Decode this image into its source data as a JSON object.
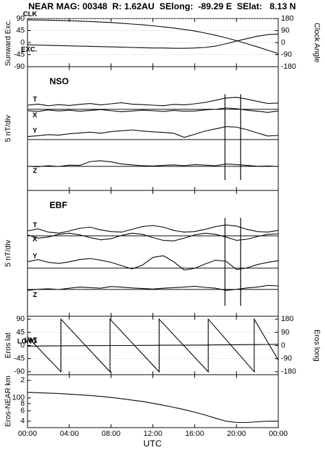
{
  "figure": {
    "title": "NEAR MAG: 00348  R: 1.62AU  SElong:  -89.29 E  SElat:   8.13 N",
    "xlabel": "UTC",
    "xlim": [
      0,
      24
    ],
    "xticks": [
      {
        "value": 0,
        "label": "00:00"
      },
      {
        "value": 4,
        "label": "04:00"
      },
      {
        "value": 8,
        "label": "08:00"
      },
      {
        "value": 12,
        "label": "12:00"
      },
      {
        "value": 16,
        "label": "16:00"
      },
      {
        "value": 20,
        "label": "20:00"
      },
      {
        "value": 24,
        "label": "00:00"
      }
    ]
  },
  "chart_data": [
    {
      "type": "line",
      "ylabel": "Sunward Exc.",
      "y2label": "Clock Angle",
      "ylim": [
        -90,
        90
      ],
      "yticks": [
        90,
        45,
        0,
        -45,
        -90
      ],
      "y2lim": [
        -180,
        180
      ],
      "y2ticks": [
        180,
        90,
        0,
        -90,
        -180
      ],
      "grid": true,
      "x": [
        0,
        1,
        2,
        3,
        4,
        5,
        6,
        7,
        8,
        9,
        10,
        11,
        12,
        13,
        14,
        15,
        16,
        17,
        18,
        19,
        20,
        21,
        22,
        23,
        24
      ],
      "series": [
        {
          "name": "CLK",
          "color": "#000000",
          "axis": "y2",
          "values": [
            170,
            169,
            168,
            166,
            164,
            161,
            158,
            154,
            150,
            145,
            139,
            133,
            126,
            118,
            109,
            99,
            87,
            72,
            55,
            36,
            15,
            -8,
            -32,
            -57,
            -82
          ]
        },
        {
          "name": "EXC.",
          "color": "#000000",
          "values": [
            -8,
            -9,
            -10,
            -11,
            -12,
            -13,
            -14,
            -15,
            -16,
            -17,
            -18,
            -19,
            -20,
            -20,
            -21,
            -21,
            -20,
            -18,
            -13,
            -4,
            6,
            15,
            24,
            30,
            32
          ]
        }
      ]
    },
    {
      "type": "line",
      "ylabel": "5 nT/div",
      "label": "NSO",
      "ylim": [
        0,
        45
      ],
      "baselines": [
        29.5,
        18.5,
        8.75
      ],
      "events": [
        18.9,
        20.4
      ],
      "x": [
        0,
        1,
        2,
        3,
        4,
        5,
        6,
        7,
        8,
        9,
        10,
        11,
        12,
        13,
        14,
        15,
        16,
        17,
        18,
        19,
        20,
        21,
        22,
        23,
        24
      ],
      "series": [
        {
          "name": "T",
          "color": "#000000",
          "values": [
            31.0,
            31.4,
            30.8,
            31.2,
            30.9,
            31.3,
            31.6,
            31.1,
            31.5,
            31.9,
            31.4,
            31.2,
            31.0,
            30.8,
            31.3,
            31.1,
            31.5,
            32.0,
            32.8,
            33.6,
            33.9,
            33.2,
            32.4,
            31.6,
            31.8
          ]
        },
        {
          "name": "X",
          "color": "#000000",
          "values": [
            29.0,
            28.7,
            29.3,
            28.9,
            29.2,
            28.8,
            29.1,
            29.4,
            29.0,
            28.6,
            28.9,
            29.2,
            29.0,
            28.7,
            29.1,
            28.8,
            28.9,
            29.3,
            29.5,
            30.0,
            29.7,
            29.2,
            28.8,
            28.4,
            28.9
          ]
        },
        {
          "name": "Y",
          "color": "#000000",
          "values": [
            19.6,
            19.9,
            20.3,
            20.1,
            20.6,
            20.9,
            21.2,
            20.8,
            21.4,
            21.7,
            22.0,
            21.6,
            21.3,
            21.1,
            20.8,
            19.3,
            20.4,
            21.6,
            22.4,
            23.2,
            23.0,
            22.1,
            20.9,
            19.8,
            20.0
          ]
        },
        {
          "name": "Z",
          "color": "#000000",
          "values": [
            8.8,
            8.6,
            9.0,
            8.7,
            9.2,
            9.1,
            10.5,
            10.8,
            10.4,
            9.6,
            9.3,
            9.0,
            8.9,
            9.1,
            9.3,
            9.0,
            9.4,
            9.2,
            9.0,
            9.6,
            9.4,
            9.1,
            8.8,
            8.9,
            8.7
          ]
        }
      ]
    },
    {
      "type": "line",
      "ylabel": "5 nT/div",
      "label": "EBF",
      "ylim": [
        0,
        45.75
      ],
      "baselines": [
        29.25,
        17.5,
        9.75
      ],
      "events": [
        18.9,
        20.4
      ],
      "x": [
        0,
        1,
        2,
        3,
        4,
        5,
        6,
        7,
        8,
        9,
        10,
        11,
        12,
        13,
        14,
        15,
        16,
        17,
        18,
        19,
        20,
        21,
        22,
        23,
        24
      ],
      "series": [
        {
          "name": "T",
          "color": "#000000",
          "values": [
            31.0,
            31.8,
            30.6,
            30.2,
            31.0,
            32.0,
            32.4,
            31.4,
            30.8,
            30.6,
            31.6,
            32.6,
            33.0,
            32.4,
            31.2,
            30.6,
            30.8,
            31.6,
            32.6,
            33.2,
            32.8,
            31.6,
            30.8,
            30.6,
            31.2
          ]
        },
        {
          "name": "X",
          "color": "#000000",
          "values": [
            29.6,
            28.4,
            28.8,
            29.8,
            30.2,
            29.6,
            28.6,
            27.8,
            28.2,
            29.4,
            30.2,
            29.8,
            28.6,
            27.6,
            27.4,
            28.4,
            29.6,
            30.2,
            29.8,
            28.8,
            27.6,
            28.0,
            29.0,
            29.8,
            30.0
          ]
        },
        {
          "name": "Y",
          "color": "#000000",
          "values": [
            19.8,
            20.6,
            19.6,
            19.2,
            19.8,
            20.6,
            21.0,
            20.4,
            19.6,
            18.4,
            17.2,
            18.6,
            21.4,
            22.0,
            19.8,
            16.8,
            17.4,
            19.0,
            20.4,
            20.0,
            17.0,
            17.6,
            18.8,
            19.6,
            20.2
          ]
        },
        {
          "name": "Z",
          "color": "#000000",
          "values": [
            9.4,
            9.8,
            10.0,
            9.7,
            10.2,
            10.6,
            10.4,
            10.2,
            10.8,
            10.6,
            10.3,
            10.1,
            9.9,
            10.2,
            10.4,
            10.6,
            10.9,
            10.5,
            10.2,
            9.4,
            9.8,
            10.3,
            10.6,
            11.2,
            11.0
          ]
        }
      ]
    },
    {
      "type": "line",
      "ylabel": "Eros lat",
      "y2label": "Eros long",
      "ylim": [
        -100,
        100
      ],
      "yticks": [
        90,
        45,
        0,
        -45,
        -90
      ],
      "y2lim": [
        -200,
        200
      ],
      "y2ticks": [
        180,
        90,
        0,
        -90,
        -180
      ],
      "grid": true,
      "x": [
        0,
        1,
        2,
        3,
        4,
        5,
        6,
        7,
        8,
        9,
        10,
        11,
        12,
        13,
        14,
        15,
        16,
        17,
        18,
        19,
        20,
        21,
        22,
        23,
        24
      ],
      "series": [
        {
          "name": "LAT",
          "color": "#000000",
          "values": [
            -2,
            -2,
            -1.5,
            -1.5,
            -1,
            -1,
            -0.5,
            -0.5,
            0,
            0,
            0,
            0.5,
            0.5,
            1,
            1,
            1,
            1.5,
            1.5,
            2,
            2,
            2.5,
            3,
            3,
            3.5,
            4
          ]
        },
        {
          "name": "LONG",
          "color": "#000000",
          "axis": "y2",
          "x": [
            0,
            3.2,
            3.2,
            7.9,
            7.9,
            12.6,
            12.6,
            17.3,
            17.3,
            21.7,
            21.7,
            24
          ],
          "values": [
            60,
            -180,
            180,
            -180,
            180,
            -180,
            180,
            -180,
            180,
            -180,
            180,
            -100
          ]
        }
      ]
    },
    {
      "type": "line",
      "ylabel": "Eros-NEAR km",
      "log": true,
      "ylim": [
        31,
        250
      ],
      "yticks": [
        {
          "value": 200,
          "label": "2"
        },
        100,
        {
          "value": 80,
          "label": "8"
        },
        {
          "value": 60,
          "label": "6"
        },
        {
          "value": 40,
          "label": "4"
        }
      ],
      "x": [
        0,
        1,
        2,
        3,
        4,
        5,
        6,
        7,
        8,
        9,
        10,
        11,
        12,
        13,
        14,
        15,
        16,
        17,
        18,
        19,
        20,
        21,
        22,
        23,
        24
      ],
      "series": [
        {
          "name": null,
          "color": "#000000",
          "values": [
            125,
            123,
            121,
            119,
            116,
            113,
            110,
            106,
            102,
            97,
            92,
            87,
            81,
            75,
            69,
            63,
            57,
            51,
            45,
            40,
            38,
            38,
            39,
            40,
            40
          ]
        }
      ]
    }
  ]
}
